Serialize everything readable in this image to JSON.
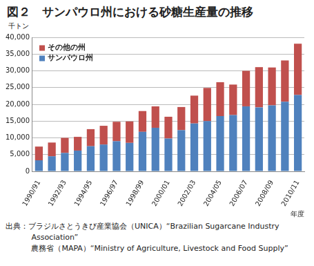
{
  "chart_data": {
    "type": "bar",
    "title": "図２　サンパウロ州における砂糖生産量の推移",
    "ylabel": "千トン",
    "xlabel": "年度",
    "categories": [
      "1990/91",
      null,
      "1992/93",
      null,
      "1994/95",
      null,
      "1996/97",
      null,
      "1998/99",
      null,
      "2000/01",
      null,
      "2002/03",
      null,
      "2004/05",
      null,
      "2006/07",
      null,
      "2008/09",
      null,
      "2010/11"
    ],
    "series": [
      {
        "name": "サンパウロ州",
        "color": "#4F81BD",
        "values": [
          3300,
          4500,
          5500,
          6200,
          7500,
          8000,
          9000,
          8500,
          11800,
          13000,
          9800,
          12300,
          14300,
          15000,
          16500,
          16800,
          19400,
          19100,
          19700,
          20800,
          22800
        ]
      },
      {
        "name": "その他の州",
        "color": "#C0504D",
        "values": [
          4100,
          4100,
          4500,
          4100,
          5100,
          5600,
          5800,
          6400,
          6200,
          6400,
          6500,
          6900,
          8300,
          9900,
          10100,
          9100,
          10600,
          12000,
          11300,
          12300,
          15300
        ]
      }
    ],
    "stacked": true,
    "ylim": [
      0,
      40000
    ],
    "yticks": [
      0,
      {
        "value": 5000,
        "label": "5,000"
      },
      {
        "value": 10000,
        "label": "10,000"
      },
      {
        "value": 15000,
        "label": "15,000"
      },
      {
        "value": 20000,
        "label": "20,000"
      },
      {
        "value": 25000,
        "label": "25,000"
      },
      {
        "value": 30000,
        "label": "30,000"
      },
      {
        "value": 35000,
        "label": "35,000"
      },
      {
        "value": 40000,
        "label": "40,000"
      }
    ],
    "grid": true,
    "legend": "upper left",
    "annotations": [
      "出典：ブラジルさとうきび産業協会（UNICA）“Brazilian Sugarcane Industry Association”",
      "農務省（MAPA）“Ministry of Agriculture, Livestock and Food Supply”"
    ]
  }
}
